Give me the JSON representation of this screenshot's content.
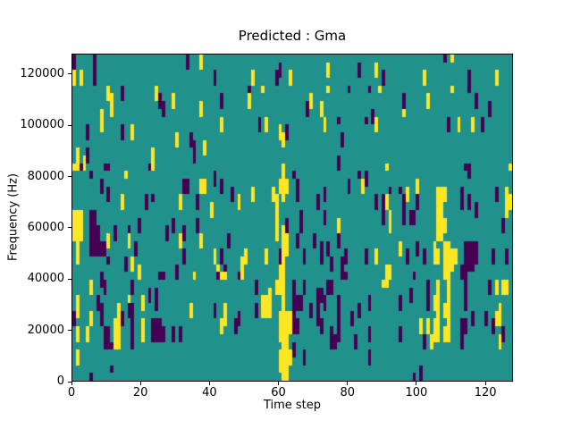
{
  "figure": {
    "title": "Predicted : Gma",
    "xlabel": "Time step",
    "ylabel": "Frequency (Hz)"
  },
  "chart_data": {
    "type": "heatmap",
    "title": "Predicted : Gma",
    "xlabel": "Time step",
    "ylabel": "Frequency (Hz)",
    "x_range": [
      0,
      128
    ],
    "y_range_hz": [
      0,
      128000
    ],
    "x_ticks": [
      0,
      20,
      40,
      60,
      80,
      100,
      120
    ],
    "y_ticks": [
      0,
      20000,
      40000,
      60000,
      80000,
      100000,
      120000
    ],
    "grid": {
      "cols": 128,
      "rows": 42,
      "row0": "top (highest frequency)"
    },
    "legend": "none",
    "colors": {
      "background": "#21918c",
      "low": "#440154",
      "high": "#fde725",
      "frame": "#000000"
    },
    "value_meaning": {
      "background": "neutral/0",
      "low": "negative/min",
      "high": "positive/max"
    },
    "yellow_runs": [
      [
        0,
        2,
        3
      ],
      [
        2,
        2,
        3
      ],
      [
        1,
        12,
        14
      ],
      [
        3,
        13,
        14
      ],
      [
        8,
        7,
        9
      ],
      [
        10,
        4,
        5
      ],
      [
        11,
        5,
        7
      ],
      [
        17,
        9,
        10
      ],
      [
        23,
        12,
        14
      ],
      [
        24,
        4,
        5
      ],
      [
        29,
        5,
        6
      ],
      [
        30,
        10,
        11
      ],
      [
        37,
        0,
        1
      ],
      [
        37,
        6,
        7
      ],
      [
        38,
        11,
        12
      ],
      [
        43,
        8,
        9
      ],
      [
        51,
        5,
        6
      ],
      [
        52,
        2,
        3
      ],
      [
        55,
        4,
        4
      ],
      [
        56,
        8,
        9
      ],
      [
        60,
        9,
        10
      ],
      [
        61,
        10,
        11
      ],
      [
        63,
        2,
        3
      ],
      [
        69,
        5,
        6
      ],
      [
        72,
        6,
        7
      ],
      [
        73,
        8,
        9
      ],
      [
        74,
        1,
        2
      ],
      [
        74,
        4,
        4
      ],
      [
        88,
        1,
        2
      ],
      [
        88,
        8,
        9
      ],
      [
        89,
        4,
        4
      ],
      [
        91,
        14,
        14
      ],
      [
        96,
        6,
        7
      ],
      [
        102,
        2,
        3
      ],
      [
        103,
        5,
        6
      ],
      [
        110,
        0,
        0
      ],
      [
        110,
        4,
        4
      ],
      [
        112,
        8,
        9
      ],
      [
        116,
        8,
        9
      ],
      [
        123,
        2,
        3
      ],
      [
        127,
        14,
        14
      ],
      [
        0,
        14,
        14
      ],
      [
        15,
        15,
        15
      ],
      [
        14,
        18,
        19
      ],
      [
        31,
        18,
        19
      ],
      [
        31,
        23,
        24
      ],
      [
        0,
        20,
        23
      ],
      [
        1,
        20,
        23
      ],
      [
        2,
        20,
        23
      ],
      [
        1,
        24,
        26
      ],
      [
        10,
        23,
        24
      ],
      [
        16,
        23,
        24
      ],
      [
        17,
        26,
        27
      ],
      [
        19,
        27,
        28
      ],
      [
        37,
        16,
        17
      ],
      [
        38,
        16,
        17
      ],
      [
        40,
        19,
        20
      ],
      [
        37,
        23,
        24
      ],
      [
        41,
        25,
        26
      ],
      [
        42,
        27,
        27
      ],
      [
        48,
        18,
        19
      ],
      [
        49,
        26,
        28
      ],
      [
        50,
        25,
        26
      ],
      [
        52,
        17,
        18
      ],
      [
        56,
        25,
        26
      ],
      [
        58,
        17,
        18
      ],
      [
        59,
        18,
        23
      ],
      [
        60,
        16,
        17
      ],
      [
        61,
        14,
        18
      ],
      [
        62,
        16,
        17
      ],
      [
        61,
        22,
        25
      ],
      [
        62,
        22,
        25
      ],
      [
        60,
        26,
        28
      ],
      [
        61,
        25,
        28
      ],
      [
        77,
        21,
        22
      ],
      [
        84,
        16,
        17
      ],
      [
        88,
        25,
        26
      ],
      [
        91,
        18,
        19
      ],
      [
        92,
        20,
        22
      ],
      [
        95,
        24,
        25
      ],
      [
        91,
        27,
        29
      ],
      [
        92,
        27,
        28
      ],
      [
        97,
        17,
        18
      ],
      [
        100,
        16,
        17
      ],
      [
        105,
        24,
        26
      ],
      [
        106,
        17,
        23
      ],
      [
        107,
        17,
        23
      ],
      [
        108,
        17,
        18
      ],
      [
        108,
        21,
        22
      ],
      [
        106,
        25,
        26
      ],
      [
        108,
        24,
        28
      ],
      [
        109,
        24,
        28
      ],
      [
        110,
        25,
        27
      ],
      [
        111,
        25,
        26
      ],
      [
        126,
        17,
        20
      ],
      [
        127,
        18,
        19
      ],
      [
        1,
        31,
        33
      ],
      [
        1,
        35,
        36
      ],
      [
        1,
        38,
        39
      ],
      [
        4,
        35,
        36
      ],
      [
        5,
        29,
        30
      ],
      [
        5,
        33,
        34
      ],
      [
        12,
        34,
        37
      ],
      [
        13,
        32,
        33
      ],
      [
        13,
        34,
        37
      ],
      [
        16,
        31,
        31
      ],
      [
        20,
        31,
        32
      ],
      [
        20,
        34,
        36
      ],
      [
        34,
        32,
        33
      ],
      [
        35,
        28,
        28
      ],
      [
        43,
        28,
        28
      ],
      [
        43,
        34,
        35
      ],
      [
        44,
        28,
        28
      ],
      [
        44,
        32,
        34
      ],
      [
        55,
        31,
        33
      ],
      [
        56,
        31,
        33
      ],
      [
        57,
        30,
        33
      ],
      [
        59,
        29,
        30
      ],
      [
        60,
        29,
        30
      ],
      [
        61,
        28,
        31
      ],
      [
        61,
        32,
        40
      ],
      [
        62,
        33,
        40
      ],
      [
        63,
        33,
        35
      ],
      [
        60,
        33,
        36
      ],
      [
        60,
        38,
        40
      ],
      [
        61,
        41,
        41
      ],
      [
        62,
        41,
        41
      ],
      [
        63,
        38,
        39
      ],
      [
        90,
        29,
        29
      ],
      [
        101,
        34,
        35
      ],
      [
        103,
        34,
        35
      ],
      [
        104,
        36,
        37
      ],
      [
        105,
        31,
        32
      ],
      [
        105,
        34,
        36
      ],
      [
        106,
        29,
        32
      ],
      [
        106,
        33,
        34
      ],
      [
        106,
        34,
        36
      ],
      [
        108,
        32,
        33
      ],
      [
        108,
        35,
        36
      ],
      [
        109,
        29,
        36
      ],
      [
        123,
        29,
        30
      ],
      [
        123,
        33,
        34
      ],
      [
        124,
        32,
        34
      ],
      [
        124,
        36,
        37
      ],
      [
        125,
        29,
        30
      ],
      [
        126,
        29,
        30
      ]
    ],
    "purple_runs": [
      [
        0,
        0,
        1
      ],
      [
        6,
        0,
        3
      ],
      [
        4,
        9,
        10
      ],
      [
        4,
        12,
        13
      ],
      [
        10,
        14,
        14
      ],
      [
        14,
        4,
        5
      ],
      [
        14,
        9,
        10
      ],
      [
        25,
        5,
        6
      ],
      [
        26,
        6,
        7
      ],
      [
        33,
        0,
        1
      ],
      [
        34,
        10,
        11
      ],
      [
        35,
        11,
        13
      ],
      [
        41,
        2,
        3
      ],
      [
        43,
        5,
        6
      ],
      [
        51,
        4,
        4
      ],
      [
        54,
        8,
        9
      ],
      [
        59,
        2,
        3
      ],
      [
        60,
        1,
        2
      ],
      [
        62,
        9,
        10
      ],
      [
        68,
        6,
        7
      ],
      [
        77,
        8,
        8
      ],
      [
        77,
        13,
        14
      ],
      [
        78,
        10,
        11
      ],
      [
        80,
        4,
        4
      ],
      [
        83,
        1,
        2
      ],
      [
        85,
        8,
        8
      ],
      [
        86,
        4,
        4
      ],
      [
        87,
        7,
        8
      ],
      [
        90,
        2,
        3
      ],
      [
        96,
        5,
        6
      ],
      [
        108,
        0,
        0
      ],
      [
        109,
        8,
        9
      ],
      [
        114,
        14,
        14
      ],
      [
        115,
        2,
        4
      ],
      [
        117,
        5,
        6
      ],
      [
        119,
        8,
        9
      ],
      [
        121,
        6,
        7
      ],
      [
        2,
        14,
        14
      ],
      [
        5,
        15,
        15
      ],
      [
        5,
        20,
        25
      ],
      [
        6,
        20,
        25
      ],
      [
        7,
        22,
        25
      ],
      [
        8,
        16,
        17
      ],
      [
        8,
        24,
        25
      ],
      [
        9,
        14,
        14
      ],
      [
        9,
        24,
        25
      ],
      [
        10,
        17,
        18
      ],
      [
        10,
        26,
        26
      ],
      [
        12,
        22,
        23
      ],
      [
        15,
        26,
        27
      ],
      [
        16,
        22,
        22
      ],
      [
        18,
        24,
        25
      ],
      [
        19,
        21,
        22
      ],
      [
        21,
        18,
        19
      ],
      [
        22,
        14,
        14
      ],
      [
        23,
        18,
        18
      ],
      [
        26,
        28,
        28
      ],
      [
        27,
        22,
        23
      ],
      [
        29,
        21,
        22
      ],
      [
        30,
        27,
        28
      ],
      [
        32,
        16,
        17
      ],
      [
        33,
        16,
        17
      ],
      [
        32,
        22,
        23
      ],
      [
        32,
        25,
        26
      ],
      [
        36,
        18,
        19
      ],
      [
        36,
        21,
        22
      ],
      [
        41,
        15,
        16
      ],
      [
        43,
        16,
        17
      ],
      [
        43,
        25,
        26
      ],
      [
        44,
        27,
        27
      ],
      [
        45,
        23,
        24
      ],
      [
        46,
        17,
        18
      ],
      [
        60,
        25,
        26
      ],
      [
        62,
        21,
        22
      ],
      [
        64,
        15,
        15
      ],
      [
        65,
        16,
        18
      ],
      [
        65,
        23,
        24
      ],
      [
        66,
        20,
        22
      ],
      [
        67,
        25,
        26
      ],
      [
        70,
        23,
        24
      ],
      [
        71,
        18,
        19
      ],
      [
        72,
        24,
        26
      ],
      [
        73,
        17,
        18
      ],
      [
        73,
        20,
        21
      ],
      [
        74,
        24,
        25
      ],
      [
        75,
        26,
        27
      ],
      [
        77,
        23,
        24
      ],
      [
        78,
        26,
        28
      ],
      [
        79,
        25,
        26
      ],
      [
        80,
        16,
        17
      ],
      [
        83,
        15,
        15
      ],
      [
        85,
        15,
        16
      ],
      [
        85,
        25,
        26
      ],
      [
        88,
        18,
        19
      ],
      [
        90,
        18,
        21
      ],
      [
        92,
        17,
        17
      ],
      [
        95,
        17,
        17
      ],
      [
        96,
        18,
        21
      ],
      [
        97,
        25,
        26
      ],
      [
        98,
        20,
        21
      ],
      [
        99,
        20,
        21
      ],
      [
        100,
        18,
        19
      ],
      [
        100,
        24,
        25
      ],
      [
        102,
        25,
        26
      ],
      [
        113,
        17,
        19
      ],
      [
        113,
        27,
        28
      ],
      [
        114,
        24,
        32
      ],
      [
        115,
        14,
        15
      ],
      [
        115,
        18,
        19
      ],
      [
        115,
        24,
        27
      ],
      [
        116,
        24,
        27
      ],
      [
        117,
        19,
        20
      ],
      [
        117,
        24,
        26
      ],
      [
        122,
        25,
        26
      ],
      [
        123,
        17,
        18
      ],
      [
        125,
        21,
        22
      ],
      [
        126,
        25,
        26
      ],
      [
        0,
        33,
        34
      ],
      [
        5,
        41,
        41
      ],
      [
        7,
        31,
        32
      ],
      [
        8,
        28,
        29
      ],
      [
        8,
        32,
        34
      ],
      [
        9,
        29,
        30
      ],
      [
        9,
        35,
        37
      ],
      [
        10,
        35,
        37
      ],
      [
        11,
        37,
        37
      ],
      [
        11,
        40,
        40
      ],
      [
        14,
        33,
        34
      ],
      [
        16,
        32,
        33
      ],
      [
        17,
        29,
        30
      ],
      [
        17,
        32,
        37
      ],
      [
        22,
        30,
        31
      ],
      [
        23,
        34,
        36
      ],
      [
        24,
        30,
        32
      ],
      [
        24,
        34,
        36
      ],
      [
        25,
        28,
        28
      ],
      [
        25,
        34,
        36
      ],
      [
        26,
        35,
        36
      ],
      [
        29,
        35,
        36
      ],
      [
        31,
        35,
        36
      ],
      [
        41,
        32,
        33
      ],
      [
        42,
        28,
        28
      ],
      [
        47,
        34,
        35
      ],
      [
        48,
        28,
        28
      ],
      [
        48,
        33,
        34
      ],
      [
        53,
        29,
        30
      ],
      [
        53,
        32,
        33
      ],
      [
        64,
        29,
        30
      ],
      [
        64,
        31,
        33
      ],
      [
        64,
        34,
        35
      ],
      [
        64,
        37,
        38
      ],
      [
        65,
        31,
        32
      ],
      [
        65,
        34,
        35
      ],
      [
        66,
        31,
        32
      ],
      [
        67,
        29,
        30
      ],
      [
        67,
        38,
        39
      ],
      [
        69,
        32,
        33
      ],
      [
        71,
        30,
        31
      ],
      [
        71,
        32,
        34
      ],
      [
        72,
        30,
        31
      ],
      [
        72,
        34,
        35
      ],
      [
        73,
        31,
        32
      ],
      [
        74,
        29,
        30
      ],
      [
        75,
        29,
        30
      ],
      [
        75,
        35,
        36
      ],
      [
        75,
        36,
        37
      ],
      [
        76,
        36,
        37
      ],
      [
        77,
        31,
        32
      ],
      [
        77,
        33,
        36
      ],
      [
        79,
        28,
        28
      ],
      [
        81,
        33,
        34
      ],
      [
        82,
        36,
        37
      ],
      [
        83,
        32,
        33
      ],
      [
        86,
        31,
        32
      ],
      [
        86,
        35,
        36
      ],
      [
        86,
        38,
        39
      ],
      [
        95,
        31,
        32
      ],
      [
        95,
        35,
        36
      ],
      [
        98,
        30,
        31
      ],
      [
        99,
        28,
        28
      ],
      [
        99,
        41,
        41
      ],
      [
        101,
        40,
        41
      ],
      [
        102,
        36,
        37
      ],
      [
        103,
        29,
        30
      ],
      [
        103,
        31,
        32
      ],
      [
        113,
        34,
        37
      ],
      [
        114,
        34,
        35
      ],
      [
        116,
        33,
        34
      ],
      [
        120,
        33,
        34
      ],
      [
        121,
        29,
        30
      ],
      [
        122,
        34,
        35
      ],
      [
        125,
        35,
        36
      ]
    ]
  }
}
